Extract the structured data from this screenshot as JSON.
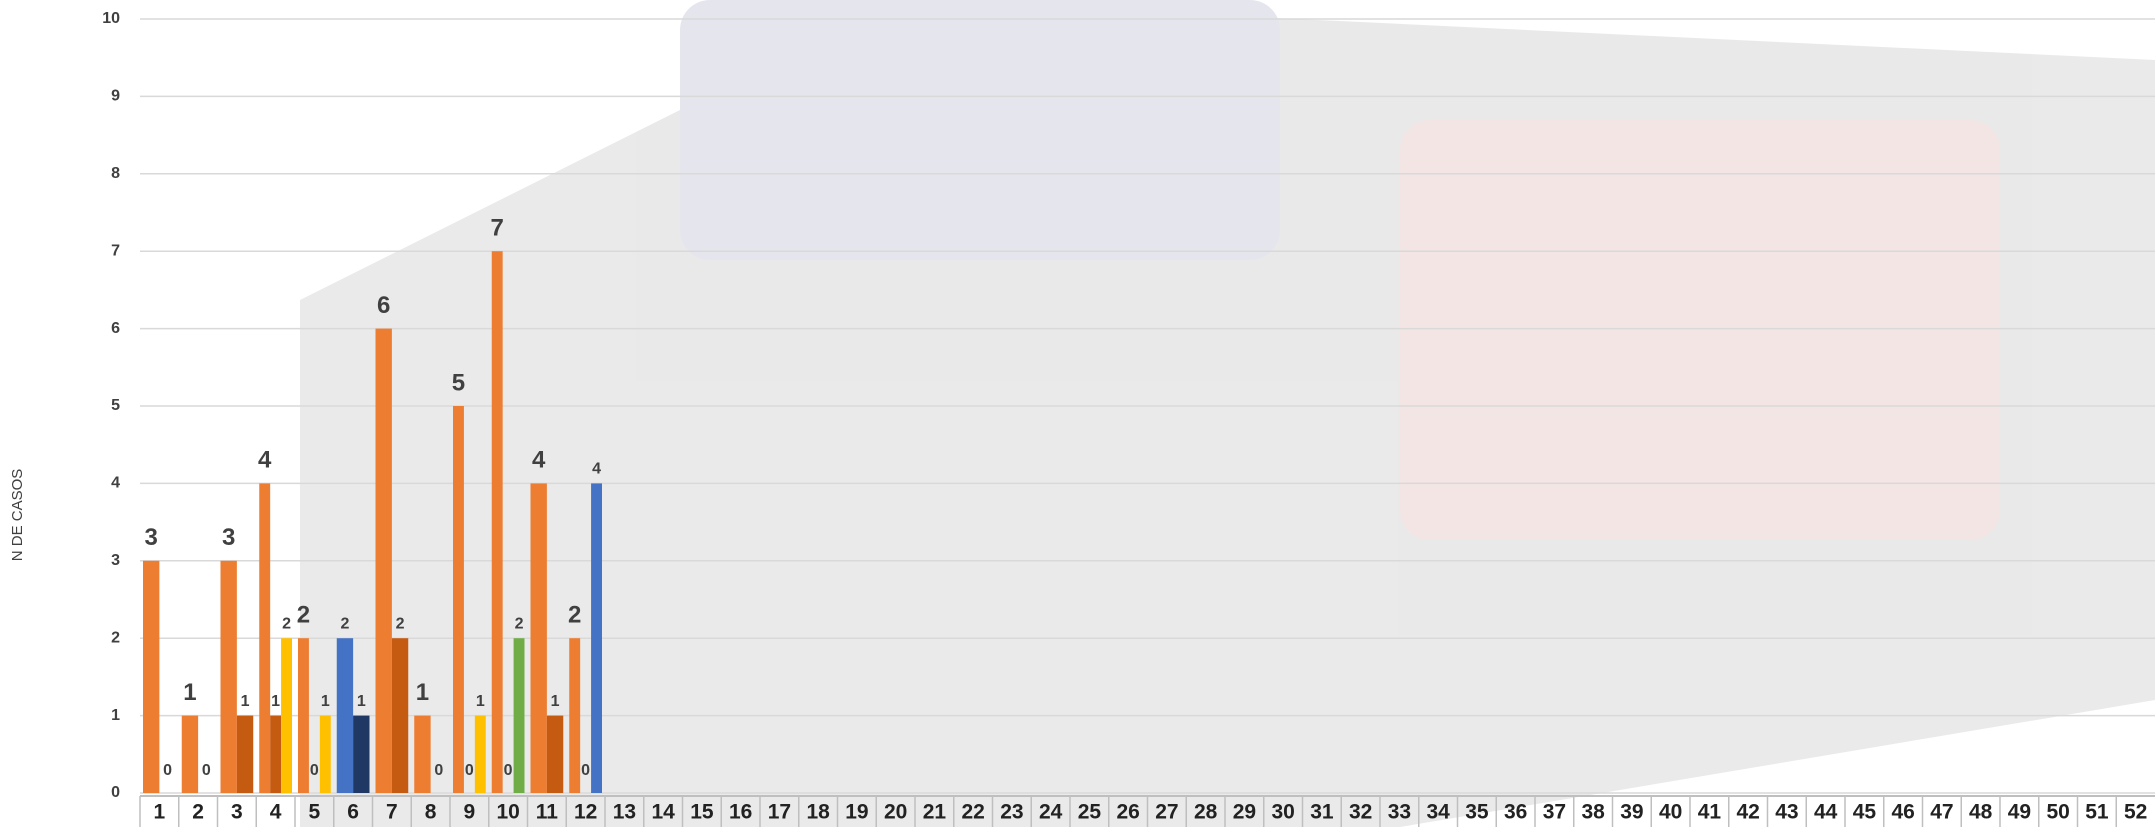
{
  "chart_data": {
    "type": "bar",
    "y_label": "N DE CASOS",
    "categories": [
      "1",
      "2",
      "3",
      "4",
      "5",
      "6",
      "7",
      "8",
      "9",
      "10",
      "11",
      "12",
      "13",
      "14",
      "15",
      "16",
      "17",
      "18",
      "19",
      "20",
      "21",
      "22",
      "23",
      "24",
      "25",
      "26",
      "27",
      "28",
      "29",
      "30",
      "31",
      "32",
      "33",
      "34",
      "35",
      "36",
      "37",
      "38",
      "39",
      "40",
      "41",
      "42",
      "43",
      "44",
      "45",
      "46",
      "47",
      "48",
      "49",
      "50",
      "51",
      "52"
    ],
    "ylim": [
      0,
      10
    ],
    "yticks": [
      0,
      1,
      2,
      3,
      4,
      5,
      6,
      7,
      8,
      9,
      10
    ],
    "grid": true,
    "series": [
      {
        "color": "#ed7d31",
        "values": [
          3,
          1,
          3,
          4,
          2,
          null,
          6,
          1,
          5,
          7,
          4,
          2,
          null,
          null,
          null,
          null,
          null,
          null,
          null,
          null,
          null,
          null,
          null,
          null,
          null,
          null,
          null,
          null,
          null,
          null,
          null,
          null,
          null,
          null,
          null,
          null,
          null,
          null,
          null,
          null,
          null,
          null,
          null,
          null,
          null,
          null,
          null,
          null,
          null,
          null,
          null,
          null
        ]
      },
      {
        "color": "#c55a11",
        "values": [
          0,
          0,
          1,
          1,
          0,
          null,
          2,
          0,
          0,
          0,
          1,
          0,
          null,
          null,
          null,
          null,
          null,
          null,
          null,
          null,
          null,
          null,
          null,
          null,
          null,
          null,
          null,
          null,
          null,
          null,
          null,
          null,
          null,
          null,
          null,
          null,
          null,
          null,
          null,
          null,
          null,
          null,
          null,
          null,
          null,
          null,
          null,
          null,
          null,
          null,
          null,
          null
        ]
      },
      {
        "color": "#ffc000",
        "values": [
          null,
          null,
          null,
          2,
          1,
          null,
          null,
          null,
          1,
          null,
          null,
          null,
          null,
          null,
          null,
          null,
          null,
          null,
          null,
          null,
          null,
          null,
          null,
          null,
          null,
          null,
          null,
          null,
          null,
          null,
          null,
          null,
          null,
          null,
          null,
          null,
          null,
          null,
          null,
          null,
          null,
          null,
          null,
          null,
          null,
          null,
          null,
          null,
          null,
          null,
          null,
          null
        ]
      },
      {
        "color": "#4472c4",
        "values": [
          null,
          null,
          null,
          null,
          null,
          2,
          null,
          null,
          null,
          null,
          null,
          4,
          null,
          null,
          null,
          null,
          null,
          null,
          null,
          null,
          null,
          null,
          null,
          null,
          null,
          null,
          null,
          null,
          null,
          null,
          null,
          null,
          null,
          null,
          null,
          null,
          null,
          null,
          null,
          null,
          null,
          null,
          null,
          null,
          null,
          null,
          null,
          null,
          null,
          null,
          null,
          null
        ]
      },
      {
        "color": "#1f3864",
        "values": [
          null,
          null,
          null,
          null,
          null,
          1,
          null,
          null,
          null,
          null,
          null,
          null,
          null,
          null,
          null,
          null,
          null,
          null,
          null,
          null,
          null,
          null,
          null,
          null,
          null,
          null,
          null,
          null,
          null,
          null,
          null,
          null,
          null,
          null,
          null,
          null,
          null,
          null,
          null,
          null,
          null,
          null,
          null,
          null,
          null,
          null,
          null,
          null,
          null,
          null,
          null,
          null
        ]
      },
      {
        "color": "#70ad47",
        "values": [
          null,
          null,
          null,
          null,
          null,
          null,
          null,
          null,
          null,
          2,
          null,
          null,
          null,
          null,
          null,
          null,
          null,
          null,
          null,
          null,
          null,
          null,
          null,
          null,
          null,
          null,
          null,
          null,
          null,
          null,
          null,
          null,
          null,
          null,
          null,
          null,
          null,
          null,
          null,
          null,
          null,
          null,
          null,
          null,
          null,
          null,
          null,
          null,
          null,
          null,
          null,
          null
        ]
      }
    ]
  }
}
